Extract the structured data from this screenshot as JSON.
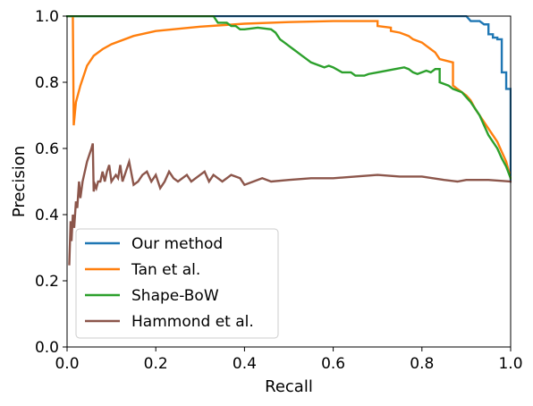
{
  "chart_data": {
    "type": "line",
    "xlabel": "Recall",
    "ylabel": "Precision",
    "xlim": [
      0.0,
      1.0
    ],
    "ylim": [
      0.0,
      1.0
    ],
    "xticks": [
      "0.0",
      "0.2",
      "0.4",
      "0.6",
      "0.8",
      "1.0"
    ],
    "yticks": [
      "0.0",
      "0.2",
      "0.4",
      "0.6",
      "0.8",
      "1.0"
    ],
    "grid": false,
    "legend_position": "lower-left",
    "series": [
      {
        "name": "Our method",
        "color": "#1f77b4",
        "points": [
          [
            0.0,
            1.0
          ],
          [
            0.9,
            1.0
          ],
          [
            0.91,
            0.985
          ],
          [
            0.93,
            0.985
          ],
          [
            0.94,
            0.975
          ],
          [
            0.95,
            0.975
          ],
          [
            0.95,
            0.945
          ],
          [
            0.96,
            0.945
          ],
          [
            0.96,
            0.935
          ],
          [
            0.97,
            0.935
          ],
          [
            0.97,
            0.93
          ],
          [
            0.98,
            0.93
          ],
          [
            0.98,
            0.83
          ],
          [
            0.99,
            0.83
          ],
          [
            0.99,
            0.78
          ],
          [
            1.0,
            0.78
          ],
          [
            1.0,
            0.5
          ]
        ]
      },
      {
        "name": "Tan et al.",
        "color": "#ff7f0e",
        "points": [
          [
            0.005,
            1.0
          ],
          [
            0.013,
            1.0
          ],
          [
            0.015,
            0.67
          ],
          [
            0.02,
            0.74
          ],
          [
            0.03,
            0.79
          ],
          [
            0.045,
            0.85
          ],
          [
            0.06,
            0.88
          ],
          [
            0.08,
            0.9
          ],
          [
            0.1,
            0.915
          ],
          [
            0.15,
            0.94
          ],
          [
            0.2,
            0.955
          ],
          [
            0.3,
            0.968
          ],
          [
            0.4,
            0.977
          ],
          [
            0.5,
            0.982
          ],
          [
            0.6,
            0.985
          ],
          [
            0.7,
            0.985
          ],
          [
            0.7,
            0.97
          ],
          [
            0.73,
            0.965
          ],
          [
            0.73,
            0.955
          ],
          [
            0.75,
            0.95
          ],
          [
            0.77,
            0.94
          ],
          [
            0.78,
            0.93
          ],
          [
            0.79,
            0.925
          ],
          [
            0.8,
            0.92
          ],
          [
            0.81,
            0.91
          ],
          [
            0.82,
            0.9
          ],
          [
            0.83,
            0.89
          ],
          [
            0.84,
            0.87
          ],
          [
            0.87,
            0.86
          ],
          [
            0.87,
            0.79
          ],
          [
            0.88,
            0.78
          ],
          [
            0.89,
            0.77
          ],
          [
            0.9,
            0.76
          ],
          [
            0.91,
            0.745
          ],
          [
            0.92,
            0.72
          ],
          [
            0.93,
            0.7
          ],
          [
            0.94,
            0.68
          ],
          [
            0.95,
            0.66
          ],
          [
            0.96,
            0.64
          ],
          [
            0.97,
            0.62
          ],
          [
            0.98,
            0.59
          ],
          [
            0.99,
            0.56
          ],
          [
            1.0,
            0.51
          ]
        ]
      },
      {
        "name": "Shape-BoW",
        "color": "#2ca02c",
        "points": [
          [
            0.0,
            1.0
          ],
          [
            0.33,
            1.0
          ],
          [
            0.34,
            0.98
          ],
          [
            0.36,
            0.98
          ],
          [
            0.37,
            0.97
          ],
          [
            0.38,
            0.97
          ],
          [
            0.39,
            0.96
          ],
          [
            0.4,
            0.96
          ],
          [
            0.43,
            0.965
          ],
          [
            0.46,
            0.96
          ],
          [
            0.47,
            0.95
          ],
          [
            0.48,
            0.93
          ],
          [
            0.49,
            0.92
          ],
          [
            0.5,
            0.91
          ],
          [
            0.51,
            0.9
          ],
          [
            0.52,
            0.89
          ],
          [
            0.53,
            0.88
          ],
          [
            0.54,
            0.87
          ],
          [
            0.55,
            0.86
          ],
          [
            0.57,
            0.85
          ],
          [
            0.58,
            0.845
          ],
          [
            0.59,
            0.85
          ],
          [
            0.6,
            0.845
          ],
          [
            0.62,
            0.83
          ],
          [
            0.64,
            0.83
          ],
          [
            0.65,
            0.82
          ],
          [
            0.67,
            0.82
          ],
          [
            0.68,
            0.825
          ],
          [
            0.7,
            0.83
          ],
          [
            0.72,
            0.835
          ],
          [
            0.74,
            0.84
          ],
          [
            0.76,
            0.845
          ],
          [
            0.77,
            0.84
          ],
          [
            0.78,
            0.83
          ],
          [
            0.79,
            0.825
          ],
          [
            0.8,
            0.83
          ],
          [
            0.81,
            0.835
          ],
          [
            0.82,
            0.83
          ],
          [
            0.83,
            0.84
          ],
          [
            0.84,
            0.84
          ],
          [
            0.84,
            0.8
          ],
          [
            0.85,
            0.795
          ],
          [
            0.86,
            0.79
          ],
          [
            0.87,
            0.78
          ],
          [
            0.88,
            0.775
          ],
          [
            0.89,
            0.77
          ],
          [
            0.9,
            0.755
          ],
          [
            0.91,
            0.74
          ],
          [
            0.92,
            0.72
          ],
          [
            0.93,
            0.7
          ],
          [
            0.94,
            0.67
          ],
          [
            0.95,
            0.64
          ],
          [
            0.96,
            0.62
          ],
          [
            0.97,
            0.6
          ],
          [
            0.98,
            0.57
          ],
          [
            0.99,
            0.545
          ],
          [
            1.0,
            0.51
          ]
        ]
      },
      {
        "name": "Hammond et al.",
        "color": "#8c564b",
        "points": [
          [
            0.005,
            0.25
          ],
          [
            0.008,
            0.38
          ],
          [
            0.01,
            0.32
          ],
          [
            0.013,
            0.4
          ],
          [
            0.016,
            0.36
          ],
          [
            0.02,
            0.44
          ],
          [
            0.023,
            0.42
          ],
          [
            0.027,
            0.5
          ],
          [
            0.03,
            0.45
          ],
          [
            0.035,
            0.5
          ],
          [
            0.04,
            0.53
          ],
          [
            0.045,
            0.56
          ],
          [
            0.05,
            0.58
          ],
          [
            0.055,
            0.6
          ],
          [
            0.058,
            0.615
          ],
          [
            0.06,
            0.47
          ],
          [
            0.063,
            0.49
          ],
          [
            0.066,
            0.48
          ],
          [
            0.07,
            0.5
          ],
          [
            0.075,
            0.5
          ],
          [
            0.08,
            0.53
          ],
          [
            0.085,
            0.5
          ],
          [
            0.09,
            0.53
          ],
          [
            0.095,
            0.55
          ],
          [
            0.1,
            0.5
          ],
          [
            0.105,
            0.51
          ],
          [
            0.11,
            0.52
          ],
          [
            0.115,
            0.51
          ],
          [
            0.12,
            0.55
          ],
          [
            0.125,
            0.5
          ],
          [
            0.13,
            0.52
          ],
          [
            0.14,
            0.56
          ],
          [
            0.15,
            0.49
          ],
          [
            0.16,
            0.5
          ],
          [
            0.17,
            0.52
          ],
          [
            0.18,
            0.53
          ],
          [
            0.19,
            0.5
          ],
          [
            0.2,
            0.52
          ],
          [
            0.21,
            0.48
          ],
          [
            0.22,
            0.5
          ],
          [
            0.23,
            0.53
          ],
          [
            0.24,
            0.51
          ],
          [
            0.25,
            0.5
          ],
          [
            0.27,
            0.52
          ],
          [
            0.28,
            0.5
          ],
          [
            0.3,
            0.52
          ],
          [
            0.31,
            0.53
          ],
          [
            0.32,
            0.5
          ],
          [
            0.33,
            0.52
          ],
          [
            0.35,
            0.5
          ],
          [
            0.37,
            0.52
          ],
          [
            0.39,
            0.51
          ],
          [
            0.4,
            0.49
          ],
          [
            0.42,
            0.5
          ],
          [
            0.44,
            0.51
          ],
          [
            0.46,
            0.5
          ],
          [
            0.5,
            0.505
          ],
          [
            0.55,
            0.51
          ],
          [
            0.6,
            0.51
          ],
          [
            0.65,
            0.515
          ],
          [
            0.7,
            0.52
          ],
          [
            0.75,
            0.515
          ],
          [
            0.8,
            0.515
          ],
          [
            0.85,
            0.505
          ],
          [
            0.88,
            0.5
          ],
          [
            0.9,
            0.505
          ],
          [
            0.95,
            0.505
          ],
          [
            1.0,
            0.5
          ]
        ]
      }
    ]
  }
}
